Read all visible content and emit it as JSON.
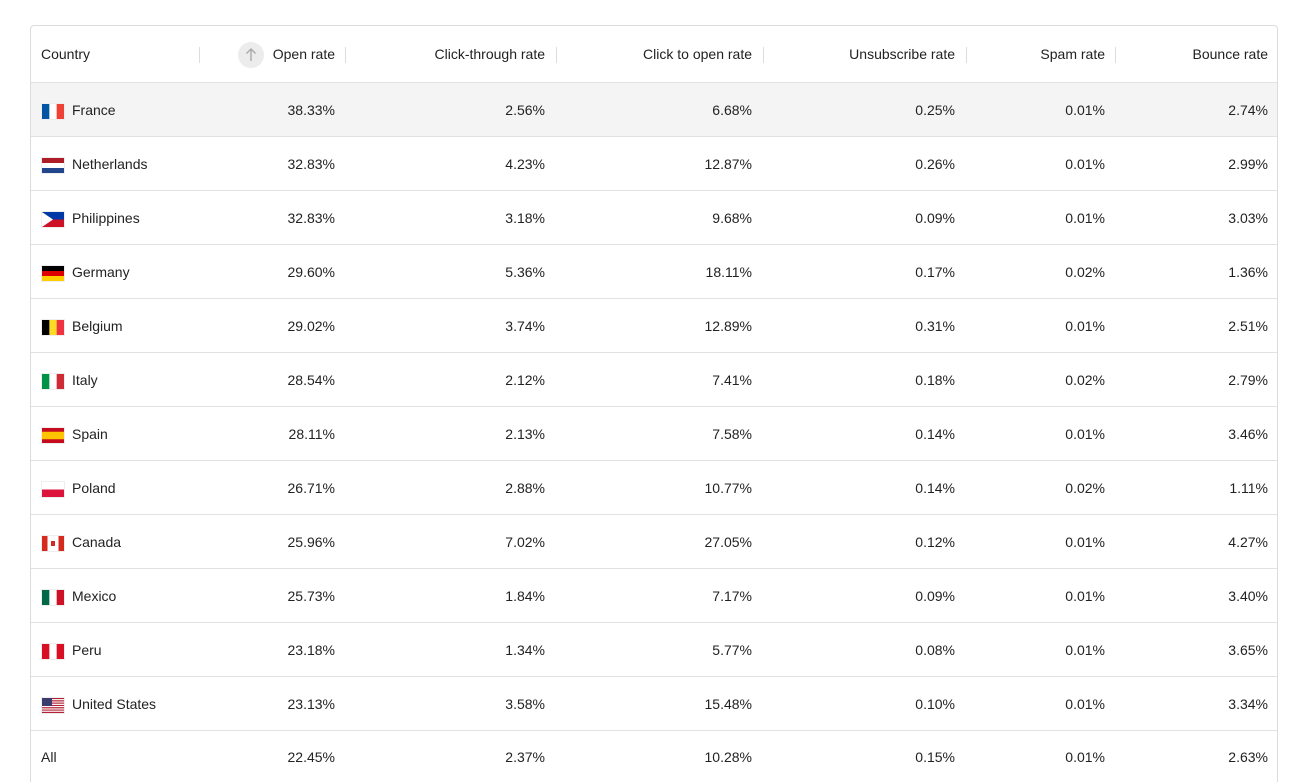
{
  "table": {
    "columns": [
      "Country",
      "Open rate",
      "Click-through rate",
      "Click to open rate",
      "Unsubscribe rate",
      "Spam rate",
      "Bounce rate"
    ],
    "rows": [
      [
        "France",
        "38.33%",
        "2.56%",
        "6.68%",
        "0.25%",
        "0.01%",
        "2.74%"
      ],
      [
        "Netherlands",
        "32.83%",
        "4.23%",
        "12.87%",
        "0.26%",
        "0.01%",
        "2.99%"
      ],
      [
        "Philippines",
        "32.83%",
        "3.18%",
        "9.68%",
        "0.09%",
        "0.01%",
        "3.03%"
      ],
      [
        "Germany",
        "29.60%",
        "5.36%",
        "18.11%",
        "0.17%",
        "0.02%",
        "1.36%"
      ],
      [
        "Belgium",
        "29.02%",
        "3.74%",
        "12.89%",
        "0.31%",
        "0.01%",
        "2.51%"
      ],
      [
        "Italy",
        "28.54%",
        "2.12%",
        "7.41%",
        "0.18%",
        "0.02%",
        "2.79%"
      ],
      [
        "Spain",
        "28.11%",
        "2.13%",
        "7.58%",
        "0.14%",
        "0.01%",
        "3.46%"
      ],
      [
        "Poland",
        "26.71%",
        "2.88%",
        "10.77%",
        "0.14%",
        "0.02%",
        "1.11%"
      ],
      [
        "Canada",
        "25.96%",
        "7.02%",
        "27.05%",
        "0.12%",
        "0.01%",
        "4.27%"
      ],
      [
        "Mexico",
        "25.73%",
        "1.84%",
        "7.17%",
        "0.09%",
        "0.01%",
        "3.40%"
      ],
      [
        "Peru",
        "23.18%",
        "1.34%",
        "5.77%",
        "0.08%",
        "0.01%",
        "3.65%"
      ],
      [
        "United States",
        "23.13%",
        "3.58%",
        "15.48%",
        "0.10%",
        "0.01%",
        "3.34%"
      ]
    ],
    "footer": [
      "All",
      "22.45%",
      "2.37%",
      "10.28%",
      "0.15%",
      "0.01%",
      "2.63%"
    ]
  }
}
